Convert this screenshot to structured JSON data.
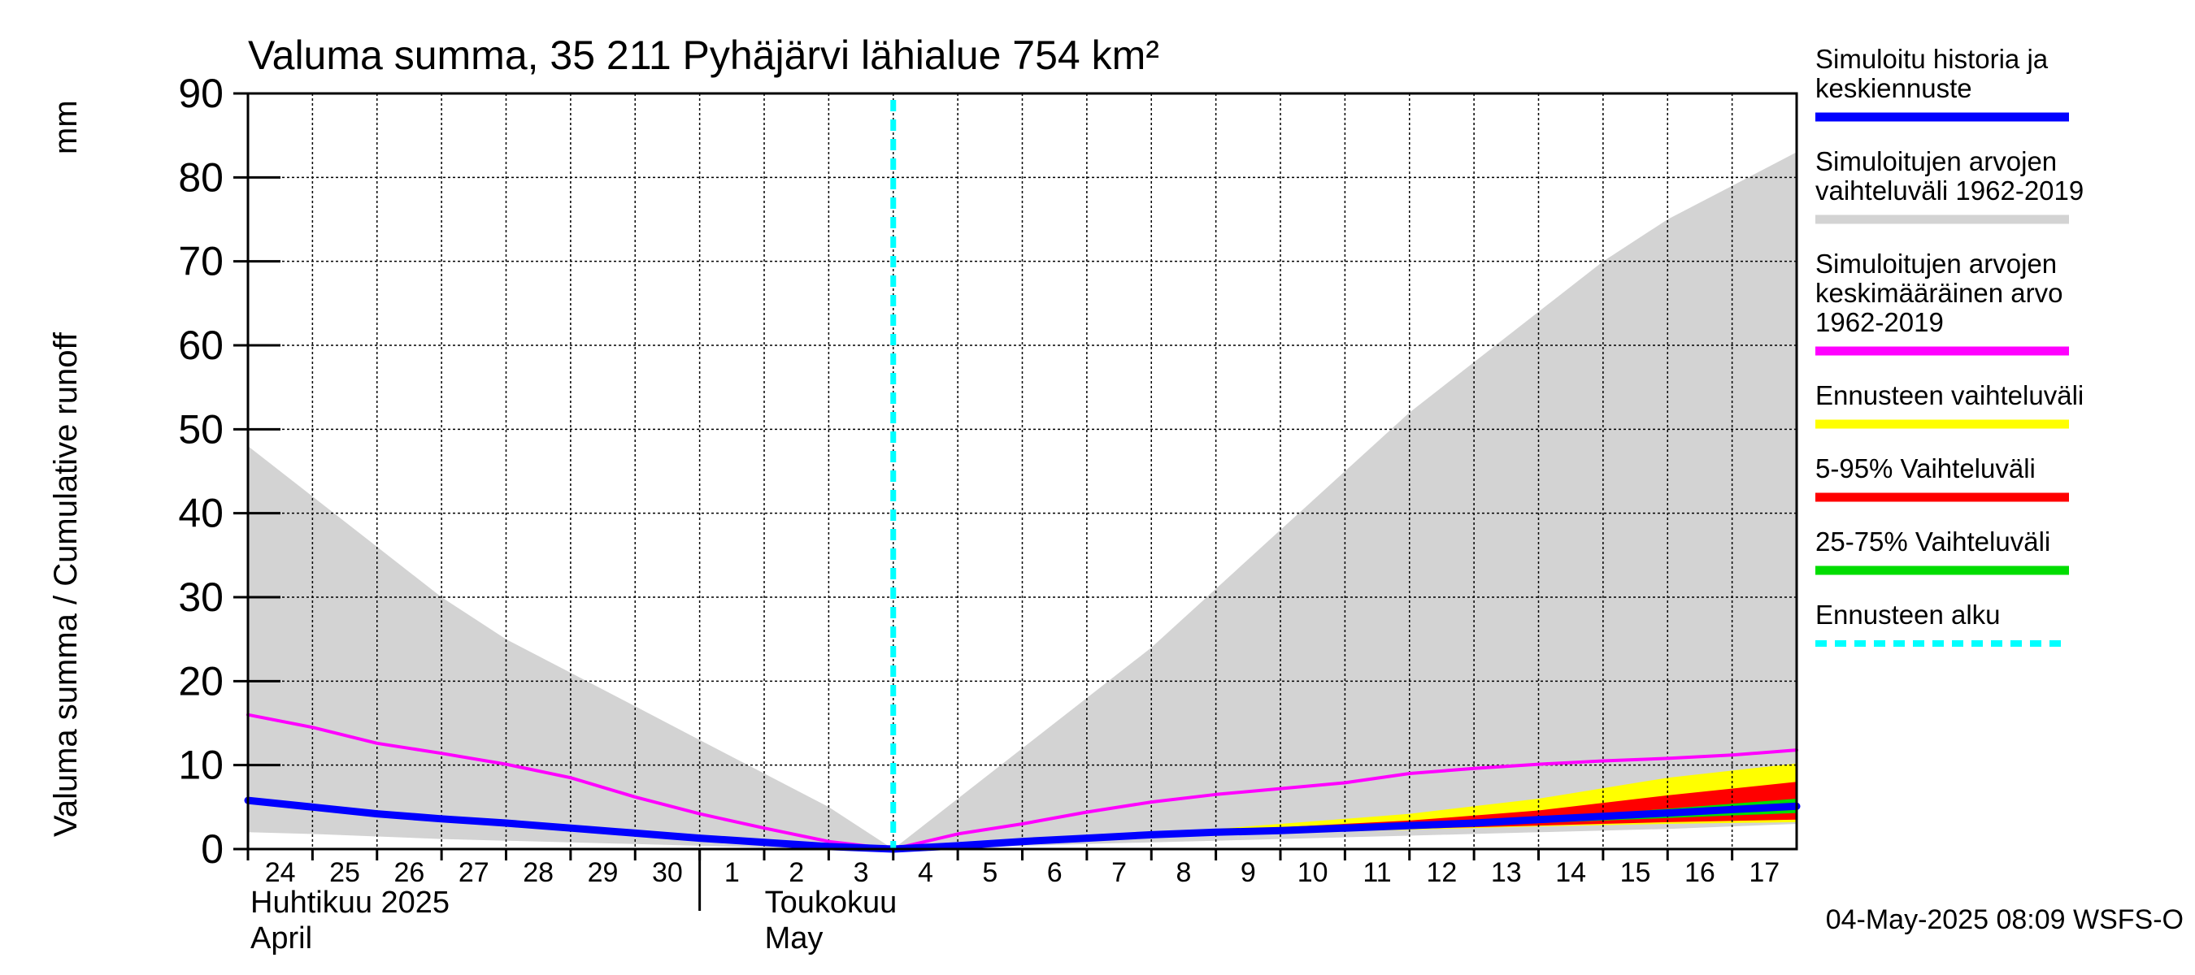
{
  "chart_data": {
    "type": "area",
    "title": "Valuma summa, 35 211 Pyhäjärvi lähialue 754 km²",
    "ylabel": "Valuma summa / Cumulative runoff",
    "yunit": "mm",
    "ylim": [
      0,
      90
    ],
    "yticks": [
      0,
      10,
      20,
      30,
      40,
      50,
      60,
      70,
      80,
      90
    ],
    "xlim": [
      0,
      24
    ],
    "xtick_labels": [
      "24",
      "25",
      "26",
      "27",
      "28",
      "29",
      "30",
      "1",
      "2",
      "3",
      "4",
      "5",
      "6",
      "7",
      "8",
      "9",
      "10",
      "11",
      "12",
      "13",
      "14",
      "15",
      "16",
      "17"
    ],
    "month_labels": [
      {
        "fi": "Huhtikuu  2025",
        "en": "April",
        "day_index": 0
      },
      {
        "fi": "Toukokuu",
        "en": "May",
        "day_index": 7
      }
    ],
    "forecast_start_x": 10.0,
    "series": [
      {
        "name": "Simuloitujen arvojen vaihteluväli 1962-2019",
        "role": "band",
        "color": "#d3d3d3",
        "x": [
          0,
          1,
          2,
          3,
          4,
          5,
          6,
          7,
          8,
          9,
          10,
          11,
          12,
          13,
          14,
          15,
          16,
          17,
          18,
          19,
          20,
          21,
          22,
          23,
          24
        ],
        "upper": [
          48,
          42,
          36,
          30,
          25,
          21,
          17,
          13,
          9,
          5,
          0,
          6,
          12,
          18,
          24,
          31,
          38,
          45,
          52,
          58,
          64,
          70,
          75,
          79,
          83
        ],
        "lower": [
          2,
          1.8,
          1.5,
          1.2,
          1.0,
          0.8,
          0.6,
          0.4,
          0.2,
          0.1,
          0,
          0.2,
          0.4,
          0.6,
          0.8,
          1.0,
          1.2,
          1.4,
          1.6,
          1.8,
          2.0,
          2.2,
          2.4,
          2.7,
          3.0
        ]
      },
      {
        "name": "Ennusteen vaihteluväli",
        "role": "band",
        "color": "#ffff00",
        "x": [
          10,
          12,
          14,
          16,
          18,
          20,
          22,
          24
        ],
        "upper": [
          0,
          0.8,
          1.8,
          3.0,
          4.2,
          6.0,
          8.5,
          10.2
        ],
        "lower": [
          0,
          0.7,
          1.4,
          1.9,
          2.3,
          2.7,
          3.0,
          3.2
        ]
      },
      {
        "name": "5-95% Vaihteluväli",
        "role": "band",
        "color": "#ff0000",
        "x": [
          10,
          12,
          14,
          16,
          18,
          20,
          22,
          24
        ],
        "upper": [
          0,
          0.8,
          1.7,
          2.6,
          3.4,
          4.6,
          6.4,
          8.0
        ],
        "lower": [
          0,
          0.7,
          1.4,
          1.9,
          2.4,
          2.8,
          3.2,
          3.5
        ]
      },
      {
        "name": "25-75% Vaihteluväli",
        "role": "band",
        "color": "#00dd00",
        "x": [
          10,
          12,
          14,
          16,
          18,
          20,
          22,
          24
        ],
        "upper": [
          0,
          0.8,
          1.6,
          2.3,
          2.9,
          3.7,
          4.8,
          6.0
        ],
        "lower": [
          0,
          0.75,
          1.5,
          2.0,
          2.6,
          3.1,
          3.7,
          4.3
        ]
      },
      {
        "name": "Simuloitujen arvojen keskimääräinen arvo 1962-2019",
        "role": "line",
        "color": "#ff00ff",
        "width": 4,
        "x": [
          0,
          1,
          2,
          3,
          4,
          5,
          6,
          7,
          8,
          9,
          10,
          11,
          12,
          13,
          14,
          15,
          16,
          17,
          18,
          19,
          20,
          21,
          22,
          23,
          24
        ],
        "y": [
          16,
          14.5,
          12.6,
          11.4,
          10.1,
          8.5,
          6.2,
          4.2,
          2.5,
          0.9,
          0,
          1.8,
          3.0,
          4.4,
          5.6,
          6.5,
          7.2,
          7.9,
          9.0,
          9.6,
          10.1,
          10.5,
          10.8,
          11.2,
          11.8
        ]
      },
      {
        "name": "Simuloitu historia ja keskiennuste",
        "role": "line",
        "color": "#0000ff",
        "width": 9,
        "x": [
          0,
          1,
          2,
          3,
          4,
          5,
          6,
          7,
          8,
          9,
          10,
          11,
          12,
          13,
          14,
          15,
          16,
          17,
          18,
          19,
          20,
          21,
          22,
          23,
          24
        ],
        "y": [
          5.8,
          5.0,
          4.2,
          3.6,
          3.1,
          2.5,
          1.9,
          1.3,
          0.8,
          0.3,
          0,
          0.4,
          0.9,
          1.3,
          1.7,
          2.0,
          2.2,
          2.5,
          2.8,
          3.1,
          3.5,
          3.9,
          4.3,
          4.7,
          5.1
        ]
      }
    ],
    "legend": [
      {
        "label_lines": [
          "Simuloitu historia ja",
          "keskiennuste"
        ],
        "color": "#0000ff",
        "style": "solid"
      },
      {
        "label_lines": [
          "Simuloitujen arvojen",
          "vaihteluväli 1962-2019"
        ],
        "color": "#d3d3d3",
        "style": "solid"
      },
      {
        "label_lines": [
          "Simuloitujen arvojen",
          "keskimääräinen arvo",
          "   1962-2019"
        ],
        "color": "#ff00ff",
        "style": "solid"
      },
      {
        "label_lines": [
          "Ennusteen vaihteluväli"
        ],
        "color": "#ffff00",
        "style": "solid"
      },
      {
        "label_lines": [
          "5-95% Vaihteluväli"
        ],
        "color": "#ff0000",
        "style": "solid"
      },
      {
        "label_lines": [
          "25-75% Vaihteluväli"
        ],
        "color": "#00dd00",
        "style": "solid"
      },
      {
        "label_lines": [
          "Ennusteen alku"
        ],
        "color": "#00ffff",
        "style": "dashed"
      }
    ],
    "footer": "04-May-2025 08:09 WSFS-O"
  }
}
